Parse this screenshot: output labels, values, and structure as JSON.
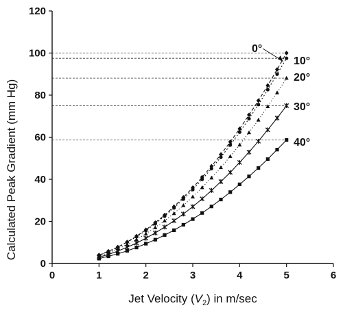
{
  "chart_data": {
    "type": "line",
    "xlabel_parts": [
      "Jet Velocity (",
      "V",
      "2",
      ") in m/sec"
    ],
    "ylabel": "Calculated Peak Gradient (mm Hg)",
    "xlim": [
      0,
      6
    ],
    "ylim": [
      0,
      120
    ],
    "xticks": [
      0,
      1,
      2,
      3,
      4,
      5,
      6
    ],
    "yticks": [
      0,
      20,
      40,
      60,
      80,
      100,
      120
    ],
    "grid": false,
    "x": [
      1.0,
      1.2,
      1.4,
      1.6,
      1.8,
      2.0,
      2.2,
      2.4,
      2.6,
      2.8,
      3.0,
      3.2,
      3.4,
      3.6,
      3.8,
      4.0,
      4.2,
      4.4,
      4.6,
      4.8,
      5.0
    ],
    "series": [
      {
        "name": "0°",
        "marker": "diamond",
        "dash": "5,3",
        "values": [
          4.0,
          5.8,
          7.8,
          10.2,
          13.0,
          16.0,
          19.4,
          23.0,
          27.0,
          31.4,
          36.0,
          41.0,
          46.2,
          51.8,
          57.8,
          64.0,
          70.6,
          77.4,
          84.6,
          92.2,
          100.0
        ]
      },
      {
        "name": "10°",
        "marker": "circle",
        "dash": "2,3",
        "values": [
          3.9,
          5.6,
          7.6,
          10.1,
          12.7,
          15.6,
          18.9,
          22.5,
          26.4,
          30.6,
          35.1,
          40.0,
          45.1,
          50.5,
          56.3,
          62.4,
          68.8,
          75.5,
          82.6,
          90.0,
          97.5
        ]
      },
      {
        "name": "20°",
        "marker": "triangle",
        "dash": "1,3",
        "values": [
          3.5,
          5.1,
          6.9,
          9.0,
          11.4,
          14.1,
          17.1,
          20.3,
          23.8,
          27.6,
          31.7,
          36.1,
          40.7,
          45.6,
          50.9,
          56.4,
          62.2,
          68.2,
          74.6,
          81.2,
          88.1
        ]
      },
      {
        "name": "30°",
        "marker": "star",
        "dash": "",
        "values": [
          3.0,
          4.3,
          5.9,
          7.7,
          9.7,
          12.0,
          14.5,
          17.3,
          20.3,
          23.5,
          27.0,
          30.7,
          34.7,
          38.9,
          43.3,
          48.0,
          52.9,
          58.1,
          63.5,
          69.1,
          75.0
        ]
      },
      {
        "name": "40°",
        "marker": "square",
        "dash": "",
        "values": [
          2.3,
          3.4,
          4.6,
          6.0,
          7.6,
          9.4,
          11.3,
          13.5,
          15.8,
          18.4,
          21.1,
          24.0,
          27.1,
          30.4,
          33.9,
          37.6,
          41.4,
          45.4,
          49.6,
          54.1,
          58.7
        ]
      }
    ],
    "reference_lines": [
      100,
      97.5,
      88.1,
      75.0,
      58.7
    ],
    "series_labels": [
      "0°",
      "10°",
      "20°",
      "30°",
      "40°"
    ]
  }
}
